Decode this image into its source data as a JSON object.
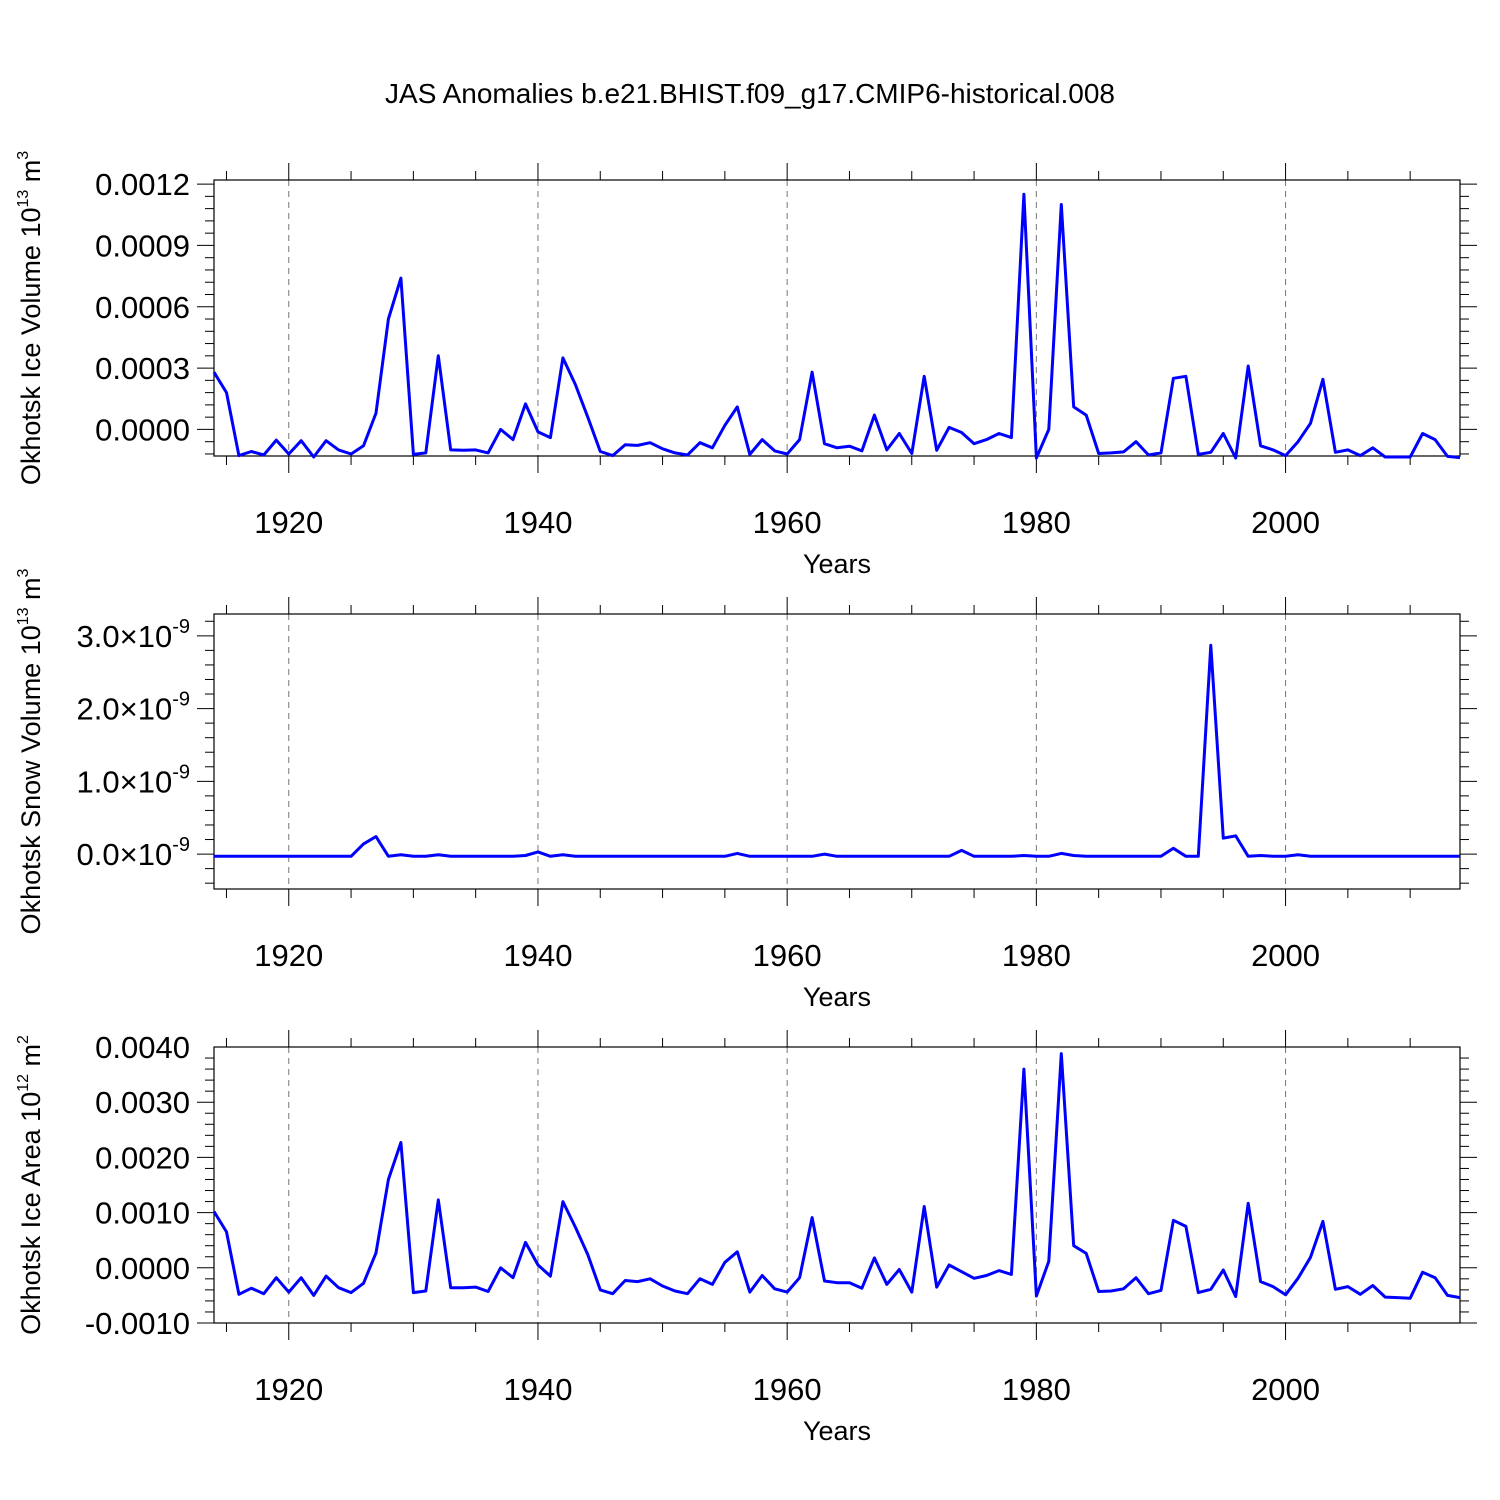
{
  "title": "JAS Anomalies b.e21.BHIST.f09_g17.CMIP6-historical.008",
  "line_color": "#0000ff",
  "chart_data": [
    {
      "type": "line",
      "xlabel": "Years",
      "ylabel": {
        "text": "Okhotsk Ice Volume 10",
        "exp": "13",
        "unit": " m",
        "unit_exp": "3"
      },
      "xlim": [
        1914,
        2014
      ],
      "ylim": [
        -0.00013,
        0.00122
      ],
      "x_ticks": [
        1920,
        1940,
        1960,
        1980,
        2000
      ],
      "x_tick_labels": [
        "1920",
        "1940",
        "1960",
        "1980",
        "2000"
      ],
      "y_ticks": [
        0.0,
        0.0003,
        0.0006,
        0.0009,
        0.0012
      ],
      "y_tick_labels": [
        "0.0000",
        "0.0003",
        "0.0006",
        "0.0009",
        "0.0012"
      ],
      "grid": "vertical dashed at major x ticks",
      "x_start": 1914,
      "values": [
        0.00028,
        0.00018,
        -0.000128,
        -0.000108,
        -0.000125,
        -5.2e-05,
        -0.00012,
        -5.5e-05,
        -0.000135,
        -5.5e-05,
        -0.0001,
        -0.00012,
        -8e-05,
        8e-05,
        0.00054,
        0.00074,
        -0.000122,
        -0.000115,
        0.00036,
        -0.0001,
        -0.000102,
        -0.0001,
        -0.000115,
        0.0,
        -5e-05,
        0.000125,
        -1.2e-05,
        -4e-05,
        0.00035,
        0.00022,
        6e-05,
        -0.000108,
        -0.000128,
        -7.5e-05,
        -7.8e-05,
        -6.5e-05,
        -9.5e-05,
        -0.000115,
        -0.000125,
        -6.5e-05,
        -9e-05,
        2e-05,
        0.00011,
        -0.000122,
        -5e-05,
        -0.000105,
        -0.00012,
        -5e-05,
        0.00028,
        -7e-05,
        -9e-05,
        -8.2e-05,
        -0.000105,
        7e-05,
        -0.0001,
        -2e-05,
        -0.000118,
        0.00026,
        -0.000102,
        1e-05,
        -1.5e-05,
        -7e-05,
        -5e-05,
        -2e-05,
        -4e-05,
        0.00115,
        -0.00014,
        0.0,
        0.0011,
        0.00011,
        7e-05,
        -0.000118,
        -0.000115,
        -0.00011,
        -6e-05,
        -0.000125,
        -0.000115,
        0.00025,
        0.00026,
        -0.000122,
        -0.000112,
        -2e-05,
        -0.00014,
        0.00031,
        -8e-05,
        -0.0001,
        -0.000128,
        -6e-05,
        3e-05,
        0.000245,
        -0.000112,
        -0.0001,
        -0.000128,
        -9e-05,
        -0.000135,
        -0.000135,
        -0.000135,
        -2e-05,
        -5e-05,
        -0.000132,
        -0.000138
      ]
    },
    {
      "type": "line",
      "xlabel": "Years",
      "ylabel": {
        "text": "Okhotsk Snow Volume 10",
        "exp": "13",
        "unit": " m",
        "unit_exp": "3"
      },
      "xlim": [
        1914,
        2014
      ],
      "ylim": [
        -4.8e-10,
        3.3e-09
      ],
      "x_ticks": [
        1920,
        1940,
        1960,
        1980,
        2000
      ],
      "x_tick_labels": [
        "1920",
        "1940",
        "1960",
        "1980",
        "2000"
      ],
      "y_ticks": [
        0.0,
        1e-09,
        2e-09,
        3e-09
      ],
      "y_tick_labels": [
        "0.0",
        "1.0",
        "2.0",
        "3.0"
      ],
      "y_tick_suffix": "×10",
      "y_tick_exp": "-9",
      "grid": "vertical dashed at major x ticks",
      "x_start": 1914,
      "values": [
        -3e-11,
        -3e-11,
        -3e-11,
        -3e-11,
        -3e-11,
        -3e-11,
        -3e-11,
        -3e-11,
        -3e-11,
        -3e-11,
        -3e-11,
        -3e-11,
        1.4e-10,
        2.4e-10,
        -3e-11,
        -1e-11,
        -3e-11,
        -3e-11,
        -1e-11,
        -3e-11,
        -3e-11,
        -3e-11,
        -3e-11,
        -3e-11,
        -3e-11,
        -2e-11,
        3e-11,
        -3e-11,
        -1e-11,
        -3e-11,
        -3e-11,
        -3e-11,
        -3e-11,
        -3e-11,
        -3e-11,
        -3e-11,
        -3e-11,
        -3e-11,
        -3e-11,
        -3e-11,
        -3e-11,
        -3e-11,
        1e-11,
        -3e-11,
        -3e-11,
        -3e-11,
        -3e-11,
        -3e-11,
        -3e-11,
        0.0,
        -3e-11,
        -3e-11,
        -3e-11,
        -3e-11,
        -3e-11,
        -3e-11,
        -3e-11,
        -3e-11,
        -3e-11,
        -3e-11,
        5e-11,
        -3e-11,
        -3e-11,
        -3e-11,
        -3e-11,
        -2e-11,
        -3e-11,
        -3e-11,
        1e-11,
        -2e-11,
        -3e-11,
        -3e-11,
        -3e-11,
        -3e-11,
        -3e-11,
        -3e-11,
        -3e-11,
        8e-11,
        -3e-11,
        -3e-11,
        2.87e-09,
        2.2e-10,
        2.5e-10,
        -3e-11,
        -2e-11,
        -3e-11,
        -3e-11,
        -1e-11,
        -3e-11,
        -3e-11,
        -3e-11,
        -3e-11,
        -3e-11,
        -3e-11,
        -3e-11,
        -3e-11,
        -3e-11,
        -3e-11,
        -3e-11,
        -3e-11,
        -3e-11
      ]
    },
    {
      "type": "line",
      "xlabel": "Years",
      "ylabel": {
        "text": "Okhotsk Ice Area 10",
        "exp": "12",
        "unit": " m",
        "unit_exp": "2"
      },
      "xlim": [
        1914,
        2014
      ],
      "ylim": [
        -0.001,
        0.004
      ],
      "x_ticks": [
        1920,
        1940,
        1960,
        1980,
        2000
      ],
      "x_tick_labels": [
        "1920",
        "1940",
        "1960",
        "1980",
        "2000"
      ],
      "y_ticks": [
        -0.001,
        0.0,
        0.001,
        0.002,
        0.003,
        0.004
      ],
      "y_tick_labels": [
        "-0.0010",
        "0.0000",
        "0.0010",
        "0.0020",
        "0.0030",
        "0.0040"
      ],
      "grid": "vertical dashed at major x ticks",
      "x_start": 1914,
      "values": [
        0.00102,
        0.00065,
        -0.00048,
        -0.00037,
        -0.00047,
        -0.00018,
        -0.00044,
        -0.00018,
        -0.0005,
        -0.00015,
        -0.00036,
        -0.00045,
        -0.00028,
        0.00027,
        0.0016,
        0.00227,
        -0.00045,
        -0.00042,
        0.00123,
        -0.00036,
        -0.00036,
        -0.00035,
        -0.00043,
        0.0,
        -0.00018,
        0.00046,
        5e-05,
        -0.00015,
        0.0012,
        0.00074,
        0.00024,
        -0.0004,
        -0.00047,
        -0.00023,
        -0.00025,
        -0.0002,
        -0.00033,
        -0.00042,
        -0.00047,
        -0.0002,
        -0.0003,
        0.0001,
        0.00029,
        -0.00044,
        -0.00014,
        -0.00038,
        -0.00044,
        -0.00018,
        0.00091,
        -0.00024,
        -0.00027,
        -0.00027,
        -0.00037,
        0.00018,
        -0.0003,
        -3e-05,
        -0.00044,
        0.00111,
        -0.00035,
        5e-05,
        -7e-05,
        -0.00019,
        -0.00014,
        -5e-05,
        -0.00012,
        0.0036,
        -0.00051,
        0.00012,
        0.00388,
        0.0004,
        0.00026,
        -0.00043,
        -0.00042,
        -0.00038,
        -0.00018,
        -0.00047,
        -0.00041,
        0.00086,
        0.00075,
        -0.00045,
        -0.00039,
        -4e-05,
        -0.00052,
        0.00117,
        -0.00025,
        -0.00034,
        -0.00049,
        -0.00019,
        0.00019,
        0.00084,
        -0.00039,
        -0.00034,
        -0.00048,
        -0.00032,
        -0.00053,
        -0.00054,
        -0.00055,
        -8e-05,
        -0.00018,
        -0.0005,
        -0.00054
      ]
    }
  ]
}
